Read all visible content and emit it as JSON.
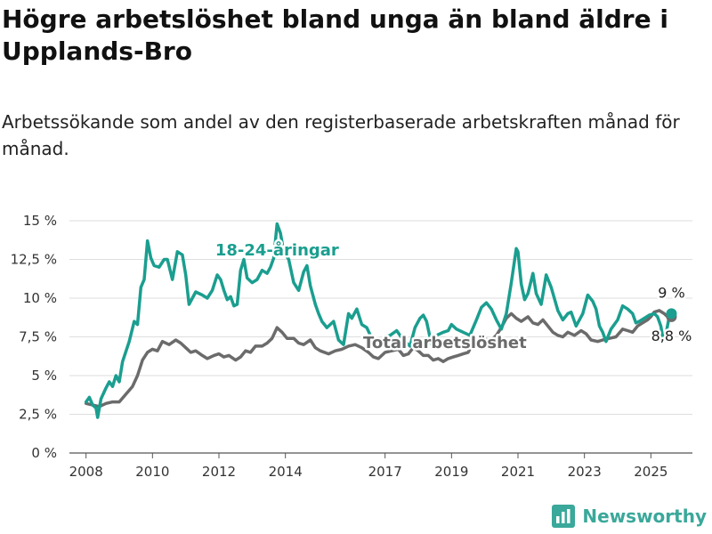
{
  "title": "Högre arbetslöshet bland unga än bland äldre i Upplands-Bro",
  "subtitle": "Arbetssökande som andel av den registerbaserade arbetskraften månad för månad.",
  "brand": {
    "name": "Newsworthy",
    "icon": "bar-chart-logo-icon"
  },
  "chart_data": {
    "type": "line",
    "x_unit": "year",
    "xlim": [
      2007.5,
      2026.25
    ],
    "ylim": [
      0,
      15
    ],
    "yticks": [
      0,
      2.5,
      5,
      7.5,
      10,
      12.5,
      15
    ],
    "ytick_labels": [
      "0 %",
      "2,5 %",
      "5 %",
      "7,5 %",
      "10 %",
      "12,5 %",
      "15 %"
    ],
    "xticks": [
      2008,
      2010,
      2012,
      2014,
      2017,
      2019,
      2021,
      2023,
      2025
    ],
    "xtick_labels": [
      "2008",
      "2010",
      "2012",
      "2014",
      "2017",
      "2019",
      "2021",
      "2023",
      "2025"
    ],
    "grid": "horizontal",
    "series": [
      {
        "name": "18-24-åringar",
        "color": "#1a9e8f",
        "end_label": "9 %",
        "points": [
          [
            2008.0,
            3.3
          ],
          [
            2008.1,
            3.6
          ],
          [
            2008.2,
            3.1
          ],
          [
            2008.3,
            2.9
          ],
          [
            2008.35,
            2.3
          ],
          [
            2008.45,
            3.5
          ],
          [
            2008.6,
            4.2
          ],
          [
            2008.7,
            4.6
          ],
          [
            2008.8,
            4.3
          ],
          [
            2008.9,
            5.0
          ],
          [
            2009.0,
            4.6
          ],
          [
            2009.1,
            5.9
          ],
          [
            2009.3,
            7.2
          ],
          [
            2009.45,
            8.5
          ],
          [
            2009.55,
            8.3
          ],
          [
            2009.65,
            10.7
          ],
          [
            2009.75,
            11.2
          ],
          [
            2009.85,
            13.7
          ],
          [
            2009.95,
            12.6
          ],
          [
            2010.05,
            12.1
          ],
          [
            2010.2,
            12.0
          ],
          [
            2010.35,
            12.5
          ],
          [
            2010.45,
            12.5
          ],
          [
            2010.6,
            11.2
          ],
          [
            2010.75,
            13.0
          ],
          [
            2010.9,
            12.8
          ],
          [
            2011.0,
            11.5
          ],
          [
            2011.1,
            9.6
          ],
          [
            2011.3,
            10.4
          ],
          [
            2011.5,
            10.2
          ],
          [
            2011.65,
            10.0
          ],
          [
            2011.8,
            10.5
          ],
          [
            2011.95,
            11.5
          ],
          [
            2012.05,
            11.2
          ],
          [
            2012.15,
            10.5
          ],
          [
            2012.25,
            9.9
          ],
          [
            2012.35,
            10.1
          ],
          [
            2012.45,
            9.5
          ],
          [
            2012.55,
            9.6
          ],
          [
            2012.65,
            11.8
          ],
          [
            2012.75,
            12.5
          ],
          [
            2012.85,
            11.3
          ],
          [
            2013.0,
            11.0
          ],
          [
            2013.15,
            11.2
          ],
          [
            2013.3,
            11.8
          ],
          [
            2013.45,
            11.6
          ],
          [
            2013.55,
            12.0
          ],
          [
            2013.65,
            12.6
          ],
          [
            2013.75,
            14.8
          ],
          [
            2013.85,
            14.2
          ],
          [
            2013.95,
            13.0
          ],
          [
            2014.1,
            12.5
          ],
          [
            2014.25,
            11.0
          ],
          [
            2014.4,
            10.5
          ],
          [
            2014.55,
            11.7
          ],
          [
            2014.65,
            12.1
          ],
          [
            2014.75,
            10.8
          ],
          [
            2014.9,
            9.6
          ],
          [
            2015.0,
            9.0
          ],
          [
            2015.1,
            8.5
          ],
          [
            2015.25,
            8.1
          ],
          [
            2015.45,
            8.5
          ],
          [
            2015.6,
            7.3
          ],
          [
            2015.75,
            7.0
          ],
          [
            2015.9,
            9.0
          ],
          [
            2016.0,
            8.7
          ],
          [
            2016.15,
            9.3
          ],
          [
            2016.3,
            8.3
          ],
          [
            2016.45,
            8.1
          ],
          [
            2016.6,
            7.4
          ],
          [
            2016.75,
            7.1
          ],
          [
            2016.9,
            7.1
          ],
          [
            2017.0,
            7.5
          ],
          [
            2017.15,
            7.6
          ],
          [
            2017.35,
            7.9
          ],
          [
            2017.55,
            7.3
          ],
          [
            2017.75,
            6.9
          ],
          [
            2017.9,
            8.1
          ],
          [
            2018.05,
            8.7
          ],
          [
            2018.15,
            8.9
          ],
          [
            2018.25,
            8.5
          ],
          [
            2018.4,
            7.0
          ],
          [
            2018.55,
            7.6
          ],
          [
            2018.75,
            7.8
          ],
          [
            2018.9,
            7.9
          ],
          [
            2019.0,
            8.3
          ],
          [
            2019.15,
            8.0
          ],
          [
            2019.35,
            7.8
          ],
          [
            2019.55,
            7.6
          ],
          [
            2019.75,
            8.6
          ],
          [
            2019.9,
            9.4
          ],
          [
            2020.05,
            9.7
          ],
          [
            2020.2,
            9.3
          ],
          [
            2020.35,
            8.6
          ],
          [
            2020.5,
            8.0
          ],
          [
            2020.65,
            9.0
          ],
          [
            2020.8,
            11.0
          ],
          [
            2020.95,
            13.2
          ],
          [
            2021.0,
            13.0
          ],
          [
            2021.1,
            10.9
          ],
          [
            2021.2,
            9.9
          ],
          [
            2021.3,
            10.3
          ],
          [
            2021.45,
            11.6
          ],
          [
            2021.55,
            10.3
          ],
          [
            2021.7,
            9.6
          ],
          [
            2021.85,
            11.5
          ],
          [
            2022.0,
            10.7
          ],
          [
            2022.2,
            9.2
          ],
          [
            2022.35,
            8.6
          ],
          [
            2022.5,
            9.0
          ],
          [
            2022.6,
            9.1
          ],
          [
            2022.75,
            8.2
          ],
          [
            2022.95,
            9.0
          ],
          [
            2023.1,
            10.2
          ],
          [
            2023.25,
            9.8
          ],
          [
            2023.35,
            9.3
          ],
          [
            2023.45,
            8.2
          ],
          [
            2023.55,
            7.8
          ],
          [
            2023.65,
            7.2
          ],
          [
            2023.8,
            8.0
          ],
          [
            2024.0,
            8.6
          ],
          [
            2024.15,
            9.5
          ],
          [
            2024.3,
            9.3
          ],
          [
            2024.45,
            9.0
          ],
          [
            2024.55,
            8.4
          ],
          [
            2024.65,
            8.5
          ],
          [
            2024.8,
            8.7
          ],
          [
            2024.95,
            8.9
          ],
          [
            2025.1,
            9.0
          ],
          [
            2025.2,
            8.8
          ],
          [
            2025.3,
            8.2
          ],
          [
            2025.38,
            7.2
          ],
          [
            2025.48,
            8.0
          ],
          [
            2025.55,
            8.8
          ],
          [
            2025.62,
            9.0
          ]
        ]
      },
      {
        "name": "Total arbetslöshet",
        "color": "#6b6b6b",
        "end_label": "8,8 %",
        "points": [
          [
            2008.0,
            3.2
          ],
          [
            2008.2,
            3.1
          ],
          [
            2008.4,
            3.0
          ],
          [
            2008.6,
            3.2
          ],
          [
            2008.8,
            3.3
          ],
          [
            2009.0,
            3.3
          ],
          [
            2009.2,
            3.8
          ],
          [
            2009.4,
            4.3
          ],
          [
            2009.55,
            5.0
          ],
          [
            2009.7,
            6.0
          ],
          [
            2009.85,
            6.5
          ],
          [
            2010.0,
            6.7
          ],
          [
            2010.15,
            6.6
          ],
          [
            2010.3,
            7.2
          ],
          [
            2010.5,
            7.0
          ],
          [
            2010.7,
            7.3
          ],
          [
            2010.85,
            7.1
          ],
          [
            2011.0,
            6.8
          ],
          [
            2011.15,
            6.5
          ],
          [
            2011.3,
            6.6
          ],
          [
            2011.5,
            6.3
          ],
          [
            2011.65,
            6.1
          ],
          [
            2011.85,
            6.3
          ],
          [
            2012.0,
            6.4
          ],
          [
            2012.15,
            6.2
          ],
          [
            2012.3,
            6.3
          ],
          [
            2012.5,
            6.0
          ],
          [
            2012.65,
            6.2
          ],
          [
            2012.8,
            6.6
          ],
          [
            2012.95,
            6.5
          ],
          [
            2013.1,
            6.9
          ],
          [
            2013.3,
            6.9
          ],
          [
            2013.45,
            7.1
          ],
          [
            2013.6,
            7.4
          ],
          [
            2013.75,
            8.1
          ],
          [
            2013.9,
            7.8
          ],
          [
            2014.05,
            7.4
          ],
          [
            2014.25,
            7.4
          ],
          [
            2014.4,
            7.1
          ],
          [
            2014.55,
            7.0
          ],
          [
            2014.75,
            7.3
          ],
          [
            2014.9,
            6.8
          ],
          [
            2015.05,
            6.6
          ],
          [
            2015.3,
            6.4
          ],
          [
            2015.5,
            6.6
          ],
          [
            2015.7,
            6.7
          ],
          [
            2015.9,
            6.9
          ],
          [
            2016.1,
            7.0
          ],
          [
            2016.3,
            6.8
          ],
          [
            2016.5,
            6.5
          ],
          [
            2016.65,
            6.2
          ],
          [
            2016.8,
            6.1
          ],
          [
            2017.0,
            6.5
          ],
          [
            2017.2,
            6.6
          ],
          [
            2017.4,
            6.7
          ],
          [
            2017.55,
            6.3
          ],
          [
            2017.7,
            6.4
          ],
          [
            2017.85,
            6.8
          ],
          [
            2018.0,
            6.6
          ],
          [
            2018.15,
            6.3
          ],
          [
            2018.3,
            6.3
          ],
          [
            2018.45,
            6.0
          ],
          [
            2018.6,
            6.1
          ],
          [
            2018.75,
            5.9
          ],
          [
            2018.9,
            6.1
          ],
          [
            2019.05,
            6.2
          ],
          [
            2019.2,
            6.3
          ],
          [
            2019.35,
            6.4
          ],
          [
            2019.5,
            6.5
          ],
          [
            2019.7,
            7.3
          ],
          [
            2019.85,
            7.5
          ],
          [
            2020.0,
            7.4
          ],
          [
            2020.15,
            7.2
          ],
          [
            2020.35,
            7.6
          ],
          [
            2020.5,
            8.1
          ],
          [
            2020.65,
            8.7
          ],
          [
            2020.8,
            9.0
          ],
          [
            2020.95,
            8.7
          ],
          [
            2021.1,
            8.5
          ],
          [
            2021.3,
            8.8
          ],
          [
            2021.45,
            8.4
          ],
          [
            2021.6,
            8.3
          ],
          [
            2021.75,
            8.6
          ],
          [
            2021.9,
            8.2
          ],
          [
            2022.05,
            7.8
          ],
          [
            2022.2,
            7.6
          ],
          [
            2022.35,
            7.5
          ],
          [
            2022.5,
            7.8
          ],
          [
            2022.7,
            7.6
          ],
          [
            2022.9,
            7.9
          ],
          [
            2023.05,
            7.7
          ],
          [
            2023.2,
            7.3
          ],
          [
            2023.4,
            7.2
          ],
          [
            2023.55,
            7.3
          ],
          [
            2023.75,
            7.4
          ],
          [
            2023.95,
            7.5
          ],
          [
            2024.15,
            8.0
          ],
          [
            2024.3,
            7.9
          ],
          [
            2024.45,
            7.8
          ],
          [
            2024.6,
            8.2
          ],
          [
            2024.75,
            8.4
          ],
          [
            2024.9,
            8.6
          ],
          [
            2025.0,
            8.8
          ],
          [
            2025.1,
            9.1
          ],
          [
            2025.25,
            9.2
          ],
          [
            2025.4,
            9.0
          ],
          [
            2025.5,
            8.8
          ],
          [
            2025.62,
            8.8
          ]
        ]
      }
    ]
  }
}
